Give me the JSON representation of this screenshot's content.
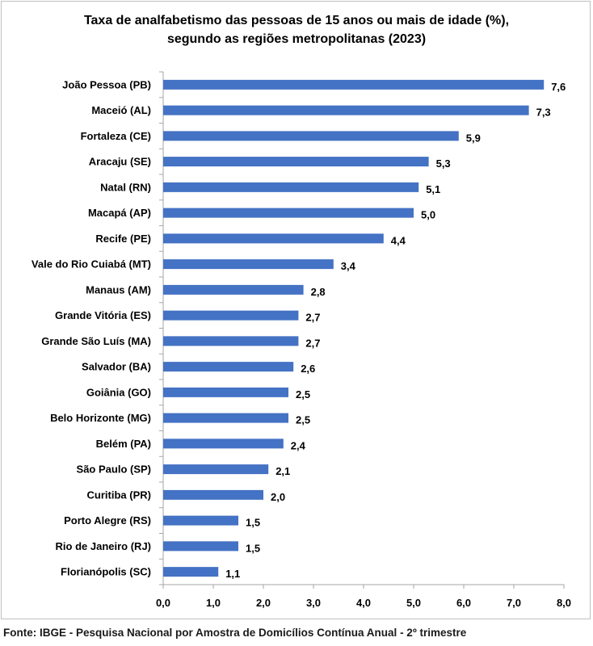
{
  "chart_data": {
    "type": "bar",
    "orientation": "horizontal",
    "title": "Taxa de analfabetismo das pessoas de 15 anos ou mais de idade (%), segundo as regiões metropolitanas  (2023)",
    "title_lines": [
      "Taxa de analfabetismo das pessoas de 15 anos ou mais de idade (%),",
      "segundo as regiões metropolitanas  (2023)"
    ],
    "categories": [
      "João Pessoa (PB)",
      "Maceió (AL)",
      "Fortaleza (CE)",
      "Aracaju (SE)",
      "Natal (RN)",
      "Macapá (AP)",
      "Recife (PE)",
      "Vale do Rio Cuiabá (MT)",
      "Manaus (AM)",
      "Grande Vitória (ES)",
      "Grande São Luís (MA)",
      "Salvador (BA)",
      "Goiânia (GO)",
      "Belo Horizonte (MG)",
      "Belém (PA)",
      "São Paulo (SP)",
      "Curitiba (PR)",
      "Porto Alegre (RS)",
      "Rio de Janeiro (RJ)",
      "Florianópolis (SC)"
    ],
    "values": [
      7.6,
      7.3,
      5.9,
      5.3,
      5.1,
      5.0,
      4.4,
      3.4,
      2.8,
      2.7,
      2.7,
      2.6,
      2.5,
      2.5,
      2.4,
      2.1,
      2.0,
      1.5,
      1.5,
      1.1
    ],
    "value_labels": [
      "7,6",
      "7,3",
      "5,9",
      "5,3",
      "5,1",
      "5,0",
      "4,4",
      "3,4",
      "2,8",
      "2,7",
      "2,7",
      "2,6",
      "2,5",
      "2,5",
      "2,4",
      "2,1",
      "2,0",
      "1,5",
      "1,5",
      "1,1"
    ],
    "xlim": [
      0,
      8
    ],
    "xticks": [
      0,
      1,
      2,
      3,
      4,
      5,
      6,
      7,
      8
    ],
    "xtick_labels": [
      "0,0",
      "1,0",
      "2,0",
      "3,0",
      "4,0",
      "5,0",
      "6,0",
      "7,0",
      "8,0"
    ],
    "xlabel": "",
    "ylabel": "",
    "grid": false,
    "legend": "none",
    "bar_color": "#4472c4",
    "source": "Fonte: IBGE - Pesquisa Nacional por Amostra de Domicílios Contínua Anual - 2º trimestre"
  }
}
